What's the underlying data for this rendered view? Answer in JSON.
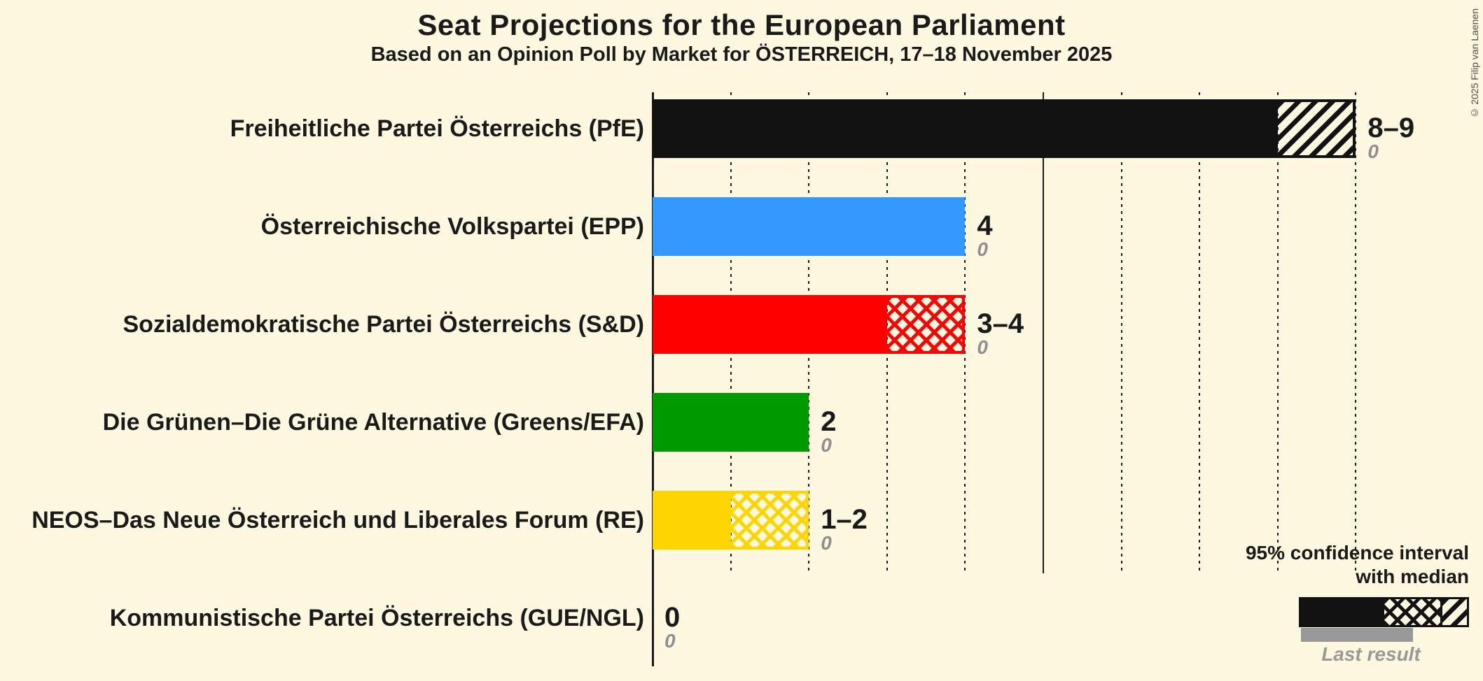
{
  "title": "Seat Projections for the European Parliament",
  "subtitle": "Based on an Opinion Poll by Market for ÖSTERREICH, 17–18 November 2025",
  "copyright": "© 2025 Filip van Laenen",
  "legend": {
    "ci_line1": "95% confidence interval",
    "ci_line2": "with median",
    "last_result_label": "Last result"
  },
  "colors": {
    "background": "#FFF8E1",
    "black": "#121212",
    "blue": "#3399FF",
    "red": "#FF0000",
    "green": "#009900",
    "yellow": "#FFD500",
    "gray_bar": "#999999",
    "gray_text": "#8F8F8F"
  },
  "chart_data": {
    "type": "bar",
    "orientation": "horizontal",
    "unit": "seats",
    "x_axis": {
      "min": 0,
      "max": 9,
      "tick_interval": 1,
      "solid_gridline_at": 5,
      "gridlines": "dotted per seat"
    },
    "parties": [
      {
        "label": "Freiheitliche Partei Österreichs (PfE)",
        "color": "#121212",
        "ci_label": "8–9",
        "last_result": "0",
        "low": 8,
        "median": 8,
        "high": 9,
        "solid_to": 8,
        "hatch": {
          "type": "diagonal",
          "from": 8,
          "to": 9
        }
      },
      {
        "label": "Österreichische Volkspartei (EPP)",
        "color": "#3399FF",
        "ci_label": "4",
        "last_result": "0",
        "low": 4,
        "median": 4,
        "high": 4,
        "solid_to": 4,
        "hatch": null
      },
      {
        "label": "Sozialdemokratische Partei Österreichs (S&D)",
        "color": "#FF0000",
        "ci_label": "3–4",
        "last_result": "0",
        "low": 3,
        "median": 4,
        "high": 4,
        "solid_to": 3,
        "hatch": {
          "type": "cross",
          "from": 3,
          "to": 4
        }
      },
      {
        "label": "Die Grünen–Die Grüne Alternative (Greens/EFA)",
        "color": "#009900",
        "ci_label": "2",
        "last_result": "0",
        "low": 2,
        "median": 2,
        "high": 2,
        "solid_to": 2,
        "hatch": null
      },
      {
        "label": "NEOS–Das Neue Österreich und Liberales Forum (RE)",
        "color": "#FFD500",
        "ci_label": "1–2",
        "last_result": "0",
        "low": 1,
        "median": 2,
        "high": 2,
        "solid_to": 1,
        "hatch": {
          "type": "cross",
          "from": 1,
          "to": 2
        }
      },
      {
        "label": "Kommunistische Partei Österreichs (GUE/NGL)",
        "color": "#121212",
        "ci_label": "0",
        "last_result": "0",
        "low": 0,
        "median": 0,
        "high": 0,
        "solid_to": 0,
        "hatch": null
      }
    ]
  }
}
